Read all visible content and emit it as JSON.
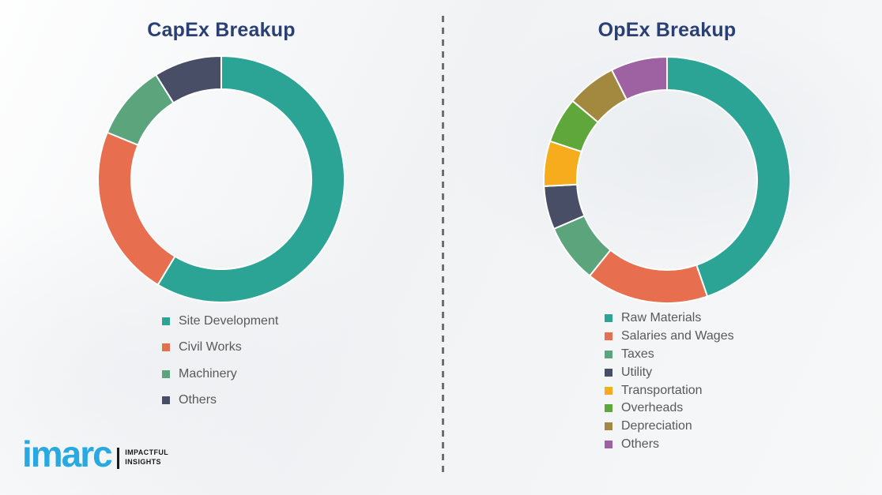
{
  "page": {
    "background_color": "#f4f5f6",
    "divider_color": "#6f6f6f"
  },
  "chart_data": [
    {
      "type": "pie",
      "subtype": "donut",
      "title": "CapEx Breakup",
      "labels": [
        "Site Development",
        "Civil Works",
        "Machinery",
        "Others"
      ],
      "values": [
        58.6,
        22.6,
        9.9,
        8.9
      ],
      "values_note": "percent, estimated from arc angles (no numeric labels shown)",
      "colors": [
        "#2ba496",
        "#e76f4f",
        "#5ca47c",
        "#474e66"
      ],
      "start_angle_deg": 0,
      "direction": "clockwise",
      "inner_radius_ratio": 0.73,
      "legend_position": "bottom",
      "title_color": "#2a3f73",
      "legend_text_color": "#595959"
    },
    {
      "type": "pie",
      "subtype": "donut",
      "title": "OpEx Breakup",
      "labels": [
        "Raw Materials",
        "Salaries and Wages",
        "Taxes",
        "Utility",
        "Transportation",
        "Overheads",
        "Depreciation",
        "Others"
      ],
      "values": [
        44.7,
        16.1,
        7.7,
        5.7,
        5.9,
        6.0,
        6.5,
        7.4
      ],
      "values_note": "percent, estimated from arc angles (no numeric labels shown)",
      "colors": [
        "#2ba496",
        "#e76f4f",
        "#5ca47c",
        "#474e66",
        "#f6ac1d",
        "#5fa73a",
        "#a2893f",
        "#9e62a3"
      ],
      "start_angle_deg": 0,
      "direction": "clockwise",
      "inner_radius_ratio": 0.73,
      "legend_position": "bottom",
      "title_color": "#2a3f73",
      "legend_text_color": "#595959"
    }
  ],
  "logo": {
    "brand": "imarc",
    "brand_color": "#29a9e1",
    "tagline_line1": "IMPACTFUL",
    "tagline_line2": "INSIGHTS"
  }
}
